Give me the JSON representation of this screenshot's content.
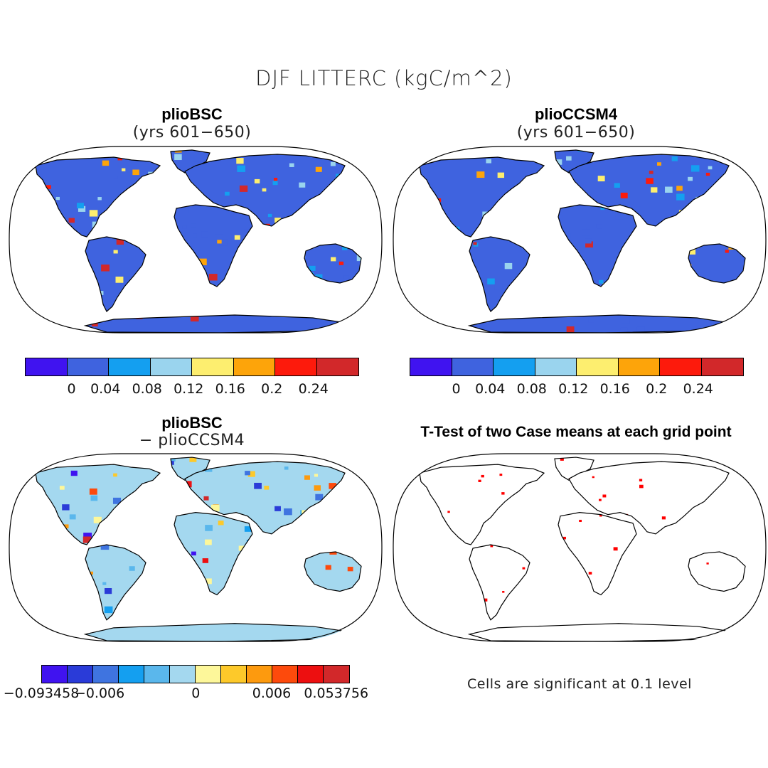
{
  "figure": {
    "title": "DJF LITTERC (kgC/m^2)"
  },
  "panels": [
    {
      "title": "plioBSC",
      "subtitle": "(yrs 601−650)"
    },
    {
      "title": "plioCCSM4",
      "subtitle": "(yrs 601−650)"
    },
    {
      "title": "plioBSC",
      "subtitle": "− plioCCSM4"
    },
    {
      "title": "T-Test of two Case means at each grid point",
      "subtitle": ""
    }
  ],
  "colorbars": {
    "absolute": {
      "colors": [
        "#4013f0",
        "#3f63df",
        "#149ff0",
        "#9ad4ee",
        "#fdee6f",
        "#fda40a",
        "#fd1a0c",
        "#d2282a"
      ],
      "labels": [
        "0",
        "0.04",
        "0.08",
        "0.12",
        "0.16",
        "0.2",
        "0.24"
      ]
    },
    "difference": {
      "colors": [
        "#4013f0",
        "#2a3bd8",
        "#3f74e0",
        "#149ff0",
        "#5ab7ec",
        "#a4d8ef",
        "#fdf79a",
        "#fdc92a",
        "#fd9a0e",
        "#fd4a0c",
        "#ed0f10",
        "#d2282a"
      ],
      "labels": [
        "−0.093458",
        "−0.006",
        "0",
        "0.006",
        "0.053756"
      ]
    }
  },
  "significance_note": "Cells are significant at 0.1 level",
  "map_colors": {
    "ocean": "#ffffff",
    "coast": "#000000",
    "significant": "#ff0000"
  }
}
